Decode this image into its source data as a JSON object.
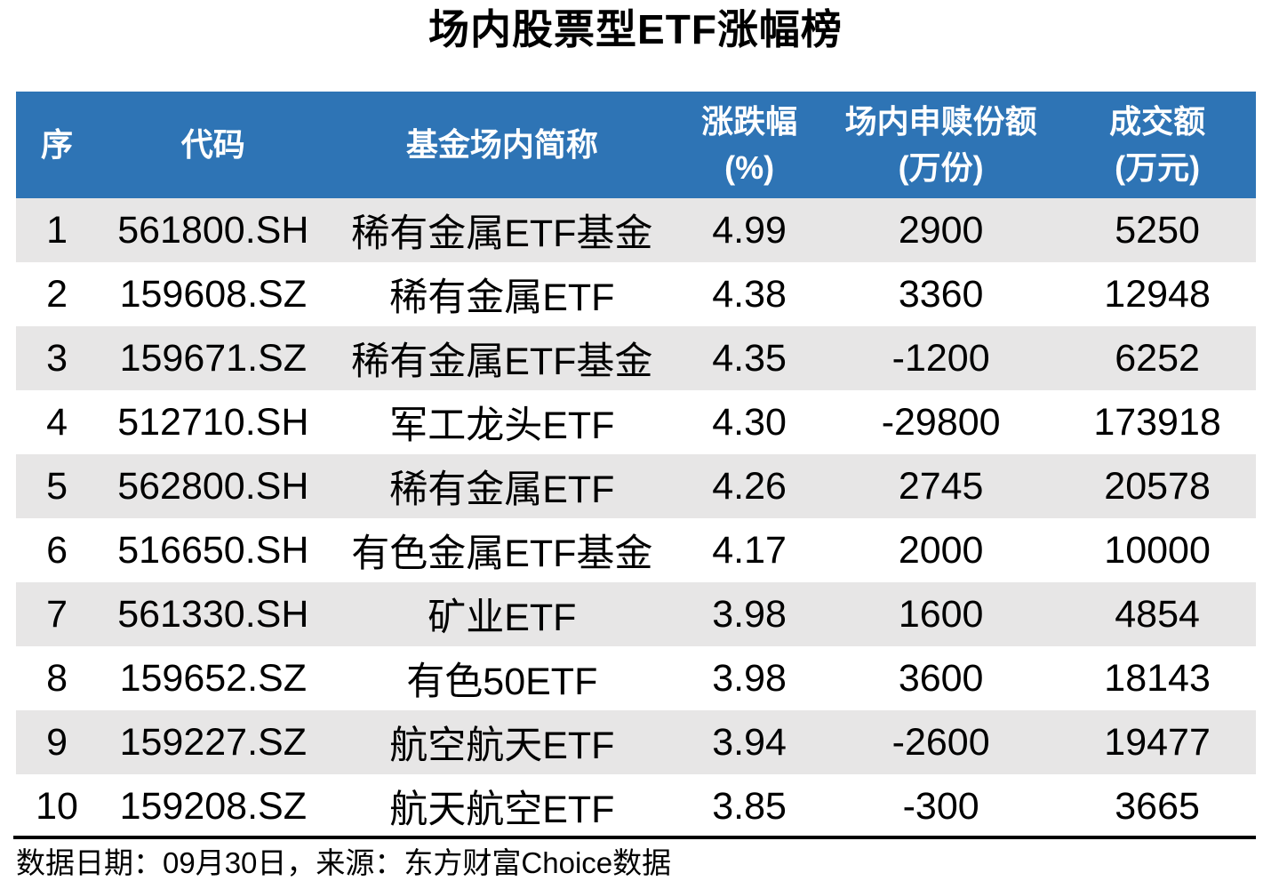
{
  "title": "场内股票型ETF涨幅榜",
  "colors": {
    "header_bg": "#2E74B5",
    "header_text": "#FFFFFF",
    "row_alt_bg": "#E7E6E6",
    "row_bg": "#FFFFFF",
    "text": "#000000",
    "divider": "#000000"
  },
  "table": {
    "column_keys": [
      "rank",
      "code",
      "name",
      "change_pct",
      "shares",
      "turnover"
    ],
    "columns": [
      {
        "label": "序",
        "sub": ""
      },
      {
        "label": "代码",
        "sub": ""
      },
      {
        "label": "基金场内简称",
        "sub": ""
      },
      {
        "label": "涨跌幅",
        "sub": "(%)"
      },
      {
        "label": "场内申赎份额",
        "sub": "(万份)"
      },
      {
        "label": "成交额",
        "sub": "(万元)"
      }
    ],
    "rows": [
      [
        "1",
        "561800.SH",
        "稀有金属ETF基金",
        "4.99",
        "2900",
        "5250"
      ],
      [
        "2",
        "159608.SZ",
        "稀有金属ETF",
        "4.38",
        "3360",
        "12948"
      ],
      [
        "3",
        "159671.SZ",
        "稀有金属ETF基金",
        "4.35",
        "-1200",
        "6252"
      ],
      [
        "4",
        "512710.SH",
        "军工龙头ETF",
        "4.30",
        "-29800",
        "173918"
      ],
      [
        "5",
        "562800.SH",
        "稀有金属ETF",
        "4.26",
        "2745",
        "20578"
      ],
      [
        "6",
        "516650.SH",
        "有色金属ETF基金",
        "4.17",
        "2000",
        "10000"
      ],
      [
        "7",
        "561330.SH",
        "矿业ETF",
        "3.98",
        "1600",
        "4854"
      ],
      [
        "8",
        "159652.SZ",
        "有色50ETF",
        "3.98",
        "3600",
        "18143"
      ],
      [
        "9",
        "159227.SZ",
        "航空航天ETF",
        "3.94",
        "-2600",
        "19477"
      ],
      [
        "10",
        "159208.SZ",
        "航天航空ETF",
        "3.85",
        "-300",
        "3665"
      ]
    ]
  },
  "footer": {
    "text": "数据日期：09月30日，来源：东方财富Choice数据"
  },
  "chart_data": {
    "type": "table",
    "title": "场内股票型ETF涨幅榜",
    "columns": [
      "序",
      "代码",
      "基金场内简称",
      "涨跌幅(%)",
      "场内申赎份额(万份)",
      "成交额(万元)"
    ],
    "rows": [
      [
        1,
        "561800.SH",
        "稀有金属ETF基金",
        4.99,
        2900,
        5250
      ],
      [
        2,
        "159608.SZ",
        "稀有金属ETF",
        4.38,
        3360,
        12948
      ],
      [
        3,
        "159671.SZ",
        "稀有金属ETF基金",
        4.35,
        -1200,
        6252
      ],
      [
        4,
        "512710.SH",
        "军工龙头ETF",
        4.3,
        -29800,
        173918
      ],
      [
        5,
        "562800.SH",
        "稀有金属ETF",
        4.26,
        2745,
        20578
      ],
      [
        6,
        "516650.SH",
        "有色金属ETF基金",
        4.17,
        2000,
        10000
      ],
      [
        7,
        "561330.SH",
        "矿业ETF",
        3.98,
        1600,
        4854
      ],
      [
        8,
        "159652.SZ",
        "有色50ETF",
        3.98,
        3600,
        18143
      ],
      [
        9,
        "159227.SZ",
        "航空航天ETF",
        3.94,
        -2600,
        19477
      ],
      [
        10,
        "159208.SZ",
        "航天航空ETF",
        3.85,
        -300,
        3665
      ]
    ],
    "source_note": "数据日期：09月30日，来源：东方财富Choice数据"
  }
}
